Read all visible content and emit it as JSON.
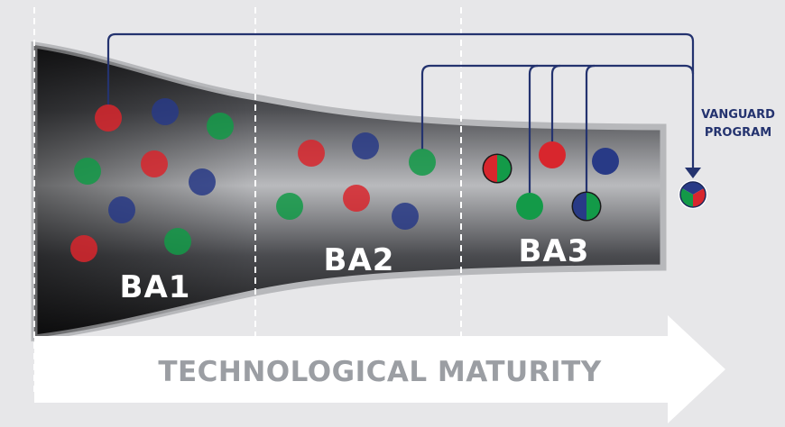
{
  "colors": {
    "background": "#e7e7e9",
    "red": "#d8262d",
    "blue": "#283a86",
    "green": "#139a48",
    "connector": "#24336f",
    "axis_text": "#9b9ea3"
  },
  "stages": [
    {
      "label": "BA1"
    },
    {
      "label": "BA2"
    },
    {
      "label": "BA3"
    }
  ],
  "vanguard": {
    "line1": "VANGUARD",
    "line2": "PROGRAM"
  },
  "axis": {
    "label": "TECHNOLOGICAL MATURITY"
  },
  "dots": {
    "ba1": [
      "red",
      "blue",
      "green",
      "green",
      "red",
      "blue",
      "blue",
      "red",
      "green"
    ],
    "ba2": [
      "red",
      "blue",
      "green",
      "green",
      "red",
      "blue"
    ],
    "ba3": [
      "red+green",
      "red",
      "blue",
      "green",
      "blue+green"
    ],
    "vanguard_result": [
      "blue",
      "red",
      "green"
    ]
  }
}
